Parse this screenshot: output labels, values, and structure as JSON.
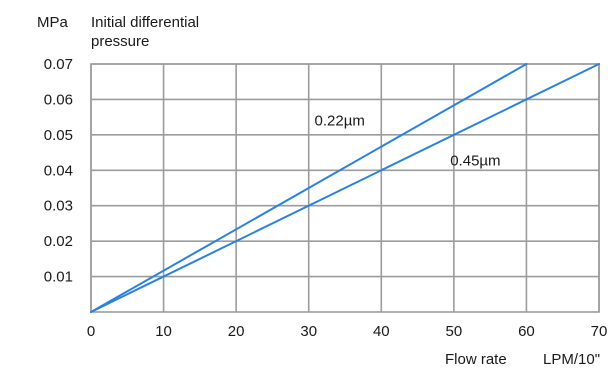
{
  "chart_data": {
    "type": "line",
    "title": "",
    "ylabel_unit": "MPa",
    "ylabel_lines": [
      "Initial differential",
      "pressure"
    ],
    "xlabel": "Flow rate",
    "xlabel_unit": "LPM/10\"",
    "xlim": [
      0,
      70
    ],
    "ylim": [
      0,
      0.07
    ],
    "x_ticks": [
      "0",
      "10",
      "20",
      "30",
      "40",
      "50",
      "60",
      "70"
    ],
    "y_ticks": [
      "0.01",
      "0.02",
      "0.03",
      "0.04",
      "0.05",
      "0.06",
      "0.07"
    ],
    "grid": true,
    "series": [
      {
        "name": "0.22µm",
        "x": [
          0,
          60
        ],
        "y": [
          0,
          0.07
        ],
        "color": "#2a82de",
        "label_at": [
          30.8,
          0.0526
        ]
      },
      {
        "name": "0.45µm",
        "x": [
          0,
          70
        ],
        "y": [
          0,
          0.07
        ],
        "color": "#2a82de",
        "label_at": [
          49.5,
          0.0413
        ]
      }
    ]
  }
}
